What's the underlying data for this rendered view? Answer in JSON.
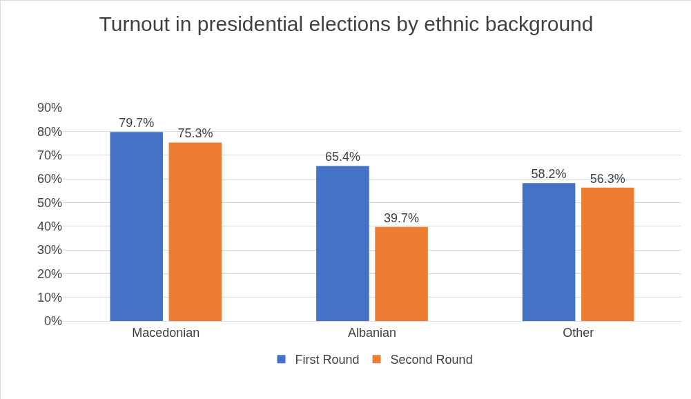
{
  "chart_data": {
    "type": "bar",
    "title": "Turnout in presidential elections by ethnic background",
    "categories": [
      "Macedonian",
      "Albanian",
      "Other"
    ],
    "series": [
      {
        "name": "First Round",
        "color": "#4472c4",
        "values": [
          79.7,
          65.4,
          58.2
        ],
        "value_labels": [
          "79.7%",
          "65.4%",
          "58.2%"
        ]
      },
      {
        "name": "Second Round",
        "color": "#ed7d31",
        "values": [
          75.3,
          39.7,
          56.3
        ],
        "value_labels": [
          "75.3%",
          "39.7%",
          "56.3%"
        ]
      }
    ],
    "ylim": [
      0,
      90
    ],
    "yticks": [
      {
        "value": 0,
        "label": "0%"
      },
      {
        "value": 10,
        "label": "10%"
      },
      {
        "value": 20,
        "label": "20%"
      },
      {
        "value": 30,
        "label": "30%"
      },
      {
        "value": 40,
        "label": "40%"
      },
      {
        "value": 50,
        "label": "50%"
      },
      {
        "value": 60,
        "label": "60%"
      },
      {
        "value": 70,
        "label": "70%"
      },
      {
        "value": 80,
        "label": "80%"
      },
      {
        "value": 90,
        "label": "90%"
      }
    ],
    "grid": "y",
    "legend": "bottom"
  }
}
